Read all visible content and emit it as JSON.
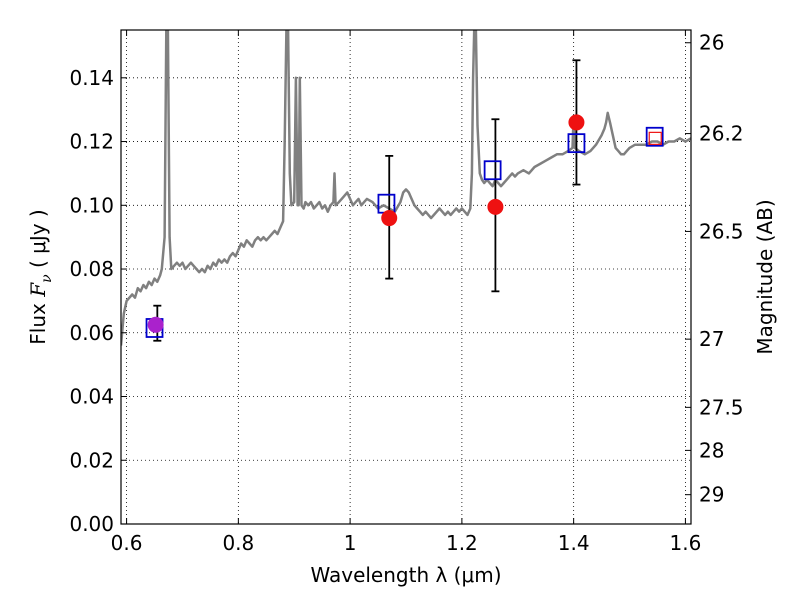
{
  "chart_data": {
    "type": "scatter",
    "xlabel": "Wavelength  λ (μm)",
    "ylabel_parts": [
      "Flux  ",
      "F",
      "ν",
      "  (  μJy  )"
    ],
    "y2label": "Magnitude (AB)",
    "xlim": [
      0.59,
      1.61
    ],
    "ylim": [
      0.0,
      0.155
    ],
    "grid": true,
    "xticks": [
      0.6,
      0.8,
      1.0,
      1.2,
      1.4,
      1.6
    ],
    "xtick_labels": [
      "0.6",
      "0.8",
      "1",
      "1.2",
      "1.4",
      "1.6"
    ],
    "yticks": [
      0.0,
      0.02,
      0.04,
      0.06,
      0.08,
      0.1,
      0.12,
      0.14
    ],
    "ytick_labels": [
      "0.00",
      "0.02",
      "0.04",
      "0.06",
      "0.08",
      "0.10",
      "0.12",
      "0.14"
    ],
    "y2ticks": [
      {
        "flux": 0.151,
        "label": "26"
      },
      {
        "flux": 0.1225,
        "label": "26.2"
      },
      {
        "flux": 0.0918,
        "label": "26.5"
      },
      {
        "flux": 0.058,
        "label": "27"
      },
      {
        "flux": 0.0366,
        "label": "27.5"
      },
      {
        "flux": 0.0231,
        "label": "28"
      },
      {
        "flux": 0.0092,
        "label": "29"
      }
    ],
    "series": [
      {
        "kind": "line",
        "color": "#808080",
        "points": [
          [
            0.59,
            0.056
          ],
          [
            0.595,
            0.066
          ],
          [
            0.6,
            0.07
          ],
          [
            0.605,
            0.071
          ],
          [
            0.61,
            0.072
          ],
          [
            0.615,
            0.071
          ],
          [
            0.62,
            0.074
          ],
          [
            0.625,
            0.073
          ],
          [
            0.63,
            0.075
          ],
          [
            0.635,
            0.074
          ],
          [
            0.64,
            0.076
          ],
          [
            0.645,
            0.075
          ],
          [
            0.65,
            0.077
          ],
          [
            0.655,
            0.076
          ],
          [
            0.66,
            0.078
          ],
          [
            0.663,
            0.08
          ],
          [
            0.668,
            0.09
          ],
          [
            0.671,
            0.155
          ],
          [
            0.674,
            0.155
          ],
          [
            0.677,
            0.09
          ],
          [
            0.68,
            0.08
          ],
          [
            0.685,
            0.081
          ],
          [
            0.69,
            0.082
          ],
          [
            0.695,
            0.081
          ],
          [
            0.7,
            0.082
          ],
          [
            0.705,
            0.08
          ],
          [
            0.71,
            0.081
          ],
          [
            0.715,
            0.082
          ],
          [
            0.72,
            0.081
          ],
          [
            0.725,
            0.08
          ],
          [
            0.73,
            0.079
          ],
          [
            0.735,
            0.08
          ],
          [
            0.74,
            0.079
          ],
          [
            0.745,
            0.081
          ],
          [
            0.75,
            0.08
          ],
          [
            0.755,
            0.082
          ],
          [
            0.76,
            0.081
          ],
          [
            0.765,
            0.083
          ],
          [
            0.77,
            0.082
          ],
          [
            0.775,
            0.083
          ],
          [
            0.78,
            0.082
          ],
          [
            0.785,
            0.084
          ],
          [
            0.79,
            0.085
          ],
          [
            0.795,
            0.084
          ],
          [
            0.8,
            0.086
          ],
          [
            0.805,
            0.088
          ],
          [
            0.81,
            0.087
          ],
          [
            0.815,
            0.089
          ],
          [
            0.82,
            0.088
          ],
          [
            0.825,
            0.087
          ],
          [
            0.83,
            0.089
          ],
          [
            0.835,
            0.09
          ],
          [
            0.84,
            0.089
          ],
          [
            0.845,
            0.09
          ],
          [
            0.85,
            0.089
          ],
          [
            0.855,
            0.09
          ],
          [
            0.86,
            0.091
          ],
          [
            0.865,
            0.092
          ],
          [
            0.87,
            0.091
          ],
          [
            0.875,
            0.093
          ],
          [
            0.88,
            0.095
          ],
          [
            0.883,
            0.12
          ],
          [
            0.886,
            0.155
          ],
          [
            0.889,
            0.155
          ],
          [
            0.892,
            0.11
          ],
          [
            0.895,
            0.1
          ],
          [
            0.9,
            0.101
          ],
          [
            0.903,
            0.14
          ],
          [
            0.906,
            0.1
          ],
          [
            0.908,
            0.1
          ],
          [
            0.91,
            0.14
          ],
          [
            0.913,
            0.1
          ],
          [
            0.917,
            0.099
          ],
          [
            0.92,
            0.101
          ],
          [
            0.925,
            0.1
          ],
          [
            0.93,
            0.101
          ],
          [
            0.935,
            0.099
          ],
          [
            0.94,
            0.1
          ],
          [
            0.945,
            0.101
          ],
          [
            0.95,
            0.099
          ],
          [
            0.955,
            0.1
          ],
          [
            0.96,
            0.098
          ],
          [
            0.965,
            0.1
          ],
          [
            0.97,
            0.101
          ],
          [
            0.972,
            0.11
          ],
          [
            0.974,
            0.1
          ],
          [
            0.98,
            0.101
          ],
          [
            0.985,
            0.102
          ],
          [
            0.99,
            0.103
          ],
          [
            0.995,
            0.104
          ],
          [
            1.0,
            0.102
          ],
          [
            1.005,
            0.1
          ],
          [
            1.01,
            0.101
          ],
          [
            1.015,
            0.102
          ],
          [
            1.02,
            0.1
          ],
          [
            1.025,
            0.101
          ],
          [
            1.03,
            0.102
          ],
          [
            1.04,
            0.101
          ],
          [
            1.05,
            0.099
          ],
          [
            1.06,
            0.1
          ],
          [
            1.07,
            0.099
          ],
          [
            1.08,
            0.098
          ],
          [
            1.09,
            0.101
          ],
          [
            1.095,
            0.104
          ],
          [
            1.1,
            0.105
          ],
          [
            1.105,
            0.104
          ],
          [
            1.11,
            0.102
          ],
          [
            1.115,
            0.1
          ],
          [
            1.12,
            0.099
          ],
          [
            1.125,
            0.098
          ],
          [
            1.13,
            0.097
          ],
          [
            1.135,
            0.098
          ],
          [
            1.14,
            0.097
          ],
          [
            1.145,
            0.096
          ],
          [
            1.15,
            0.097
          ],
          [
            1.155,
            0.098
          ],
          [
            1.16,
            0.099
          ],
          [
            1.165,
            0.098
          ],
          [
            1.17,
            0.097
          ],
          [
            1.175,
            0.098
          ],
          [
            1.18,
            0.097
          ],
          [
            1.185,
            0.098
          ],
          [
            1.19,
            0.099
          ],
          [
            1.195,
            0.098
          ],
          [
            1.2,
            0.099
          ],
          [
            1.205,
            0.098
          ],
          [
            1.21,
            0.097
          ],
          [
            1.215,
            0.099
          ],
          [
            1.218,
            0.11
          ],
          [
            1.22,
            0.14
          ],
          [
            1.222,
            0.155
          ],
          [
            1.225,
            0.155
          ],
          [
            1.228,
            0.125
          ],
          [
            1.232,
            0.11
          ],
          [
            1.236,
            0.108
          ],
          [
            1.24,
            0.107
          ],
          [
            1.245,
            0.108
          ],
          [
            1.25,
            0.107
          ],
          [
            1.255,
            0.106
          ],
          [
            1.26,
            0.108
          ],
          [
            1.265,
            0.107
          ],
          [
            1.27,
            0.106
          ],
          [
            1.275,
            0.107
          ],
          [
            1.28,
            0.108
          ],
          [
            1.285,
            0.109
          ],
          [
            1.29,
            0.11
          ],
          [
            1.295,
            0.109
          ],
          [
            1.3,
            0.11
          ],
          [
            1.31,
            0.111
          ],
          [
            1.32,
            0.11
          ],
          [
            1.33,
            0.112
          ],
          [
            1.34,
            0.113
          ],
          [
            1.35,
            0.114
          ],
          [
            1.36,
            0.115
          ],
          [
            1.37,
            0.116
          ],
          [
            1.38,
            0.116
          ],
          [
            1.39,
            0.117
          ],
          [
            1.398,
            0.118
          ],
          [
            1.4,
            0.128
          ],
          [
            1.402,
            0.118
          ],
          [
            1.41,
            0.117
          ],
          [
            1.42,
            0.116
          ],
          [
            1.43,
            0.117
          ],
          [
            1.44,
            0.119
          ],
          [
            1.45,
            0.122
          ],
          [
            1.455,
            0.124
          ],
          [
            1.458,
            0.126
          ],
          [
            1.461,
            0.129
          ],
          [
            1.465,
            0.126
          ],
          [
            1.47,
            0.122
          ],
          [
            1.475,
            0.118
          ],
          [
            1.48,
            0.117
          ],
          [
            1.485,
            0.116
          ],
          [
            1.49,
            0.116
          ],
          [
            1.495,
            0.117
          ],
          [
            1.5,
            0.118
          ],
          [
            1.51,
            0.119
          ],
          [
            1.52,
            0.119
          ],
          [
            1.53,
            0.119
          ],
          [
            1.54,
            0.12
          ],
          [
            1.55,
            0.12
          ],
          [
            1.56,
            0.119
          ],
          [
            1.57,
            0.12
          ],
          [
            1.58,
            0.12
          ],
          [
            1.59,
            0.121
          ],
          [
            1.6,
            0.12
          ],
          [
            1.61,
            0.121
          ]
        ]
      },
      {
        "kind": "errorbar",
        "color": "#000000",
        "points": [
          {
            "x": 0.655,
            "y": 0.0625,
            "yerr": [
              0.005,
              0.006
            ]
          },
          {
            "x": 1.07,
            "y": 0.096,
            "yerr": [
              0.019,
              0.0195
            ]
          },
          {
            "x": 1.26,
            "y": 0.0995,
            "yerr": [
              0.0265,
              0.0275
            ]
          },
          {
            "x": 1.405,
            "y": 0.126,
            "yerr": [
              0.0195,
              0.0195
            ]
          }
        ]
      },
      {
        "kind": "marker",
        "shape": "square",
        "color": "#0000cc",
        "points": [
          [
            0.65,
            0.0615
          ],
          [
            1.065,
            0.1005
          ],
          [
            1.255,
            0.111
          ],
          [
            1.405,
            0.1195
          ],
          [
            1.545,
            0.1215
          ]
        ]
      },
      {
        "kind": "marker",
        "shape": "circle",
        "color": "#ee1111",
        "points": [
          [
            1.07,
            0.096
          ],
          [
            1.26,
            0.0995
          ],
          [
            1.405,
            0.126
          ]
        ]
      },
      {
        "kind": "marker",
        "shape": "circle",
        "color": "#aa22cc",
        "points": [
          [
            0.652,
            0.0625
          ]
        ]
      },
      {
        "kind": "marker",
        "shape": "square-small",
        "color": "#ee1111",
        "points": [
          [
            1.546,
            0.121
          ]
        ]
      }
    ]
  }
}
